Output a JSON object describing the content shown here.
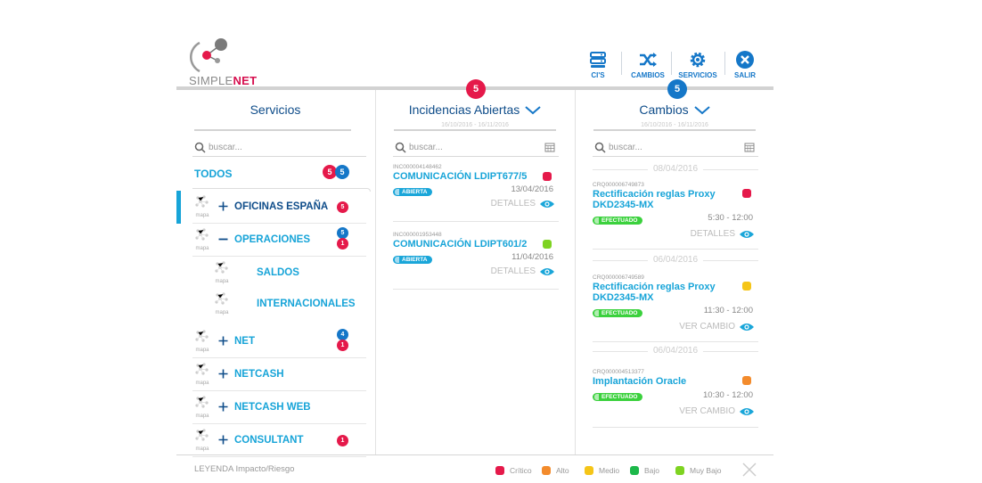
{
  "brand": {
    "part1": "SIMPLE",
    "part2": "NET"
  },
  "toolbar": [
    {
      "label": "CI'S",
      "icon": "server-icon"
    },
    {
      "label": "CAMBIOS",
      "icon": "shuffle-icon"
    },
    {
      "label": "SERVICIOS",
      "icon": "gear-icon"
    },
    {
      "label": "SALIR",
      "icon": "close-icon"
    }
  ],
  "services": {
    "title": "Servicios",
    "search_placeholder": "buscar...",
    "todos": {
      "label": "TODOS",
      "red": "5",
      "blue": "5"
    },
    "mapa_label": "mapa",
    "items": [
      {
        "name": "OFICINAS ESPAÑA",
        "expand": "plus",
        "badges": [
          {
            "v": "5",
            "c": "red"
          }
        ],
        "active": true
      },
      {
        "name": "OPERACIONES",
        "expand": "minus",
        "badges": [
          {
            "v": "5",
            "c": "blue"
          },
          {
            "v": "1",
            "c": "red"
          }
        ]
      },
      {
        "name": "SALDOS",
        "sub": true,
        "badges": []
      },
      {
        "name": "INTERNACIONALES",
        "sub": true,
        "badges": []
      },
      {
        "name": "NET",
        "expand": "plus",
        "badges": [
          {
            "v": "4",
            "c": "blue"
          },
          {
            "v": "1",
            "c": "red"
          }
        ]
      },
      {
        "name": "NETCASH",
        "expand": "plus",
        "badges": []
      },
      {
        "name": "NETCASH WEB",
        "expand": "plus",
        "badges": []
      },
      {
        "name": "CONSULTANT",
        "expand": "plus",
        "badges": [
          {
            "v": "1",
            "c": "red"
          }
        ]
      }
    ]
  },
  "incidencias": {
    "title": "Incidencias Abiertas",
    "count": "5",
    "dates": "16/10/2016 - 16/11/2016",
    "search_placeholder": "buscar...",
    "cards": [
      {
        "code": "INC000004148462",
        "title": "COMUNICACIÓN LDIPT677/5",
        "status": "ABIERTA",
        "date": "13/04/2016",
        "action": "DETALLES",
        "color": "#e5194a"
      },
      {
        "code": "INC000001953448",
        "title": "COMUNICACIÓN LDIPT601/2",
        "status": "ABIERTA",
        "date": "11/04/2016",
        "action": "DETALLES",
        "color": "#7ed321"
      }
    ]
  },
  "cambios": {
    "title": "Cambios",
    "count": "5",
    "dates": "16/10/2016 - 16/11/2016",
    "search_placeholder": "buscar...",
    "groups": [
      {
        "date": "08/04/2016",
        "code": "CRQ000006749873",
        "title": "Rectificación reglas Proxy DKD2345-MX",
        "status": "EFECTUADO",
        "time": "5:30 - 12:00",
        "action": "DETALLES",
        "color": "#e5194a"
      },
      {
        "date": "06/04/2016",
        "code": "CRQ000006749589",
        "title": "Rectificación reglas Proxy DKD2345-MX",
        "status": "EFECTUADO",
        "time": "11:30 - 12:00",
        "action": "VER CAMBIO",
        "color": "#f5c518"
      },
      {
        "date": "06/04/2016",
        "code": "CRQ000004513377",
        "title": "Implantación Oracle",
        "status": "EFECTUADO",
        "time": "10:30 - 12:00",
        "action": "VER CAMBIO",
        "color": "#f38b2c"
      }
    ]
  },
  "legend": {
    "title": "LEYENDA Impacto/Riesgo",
    "items": [
      {
        "label": "Crítico",
        "color": "#e5194a"
      },
      {
        "label": "Alto",
        "color": "#f38b2c"
      },
      {
        "label": "Medio",
        "color": "#f5c518"
      },
      {
        "label": "Bajo",
        "color": "#1cb84a"
      },
      {
        "label": "Muy Bajo",
        "color": "#7ed321"
      }
    ]
  },
  "colors": {
    "red": "#e5194a",
    "blue": "#1577c8"
  }
}
